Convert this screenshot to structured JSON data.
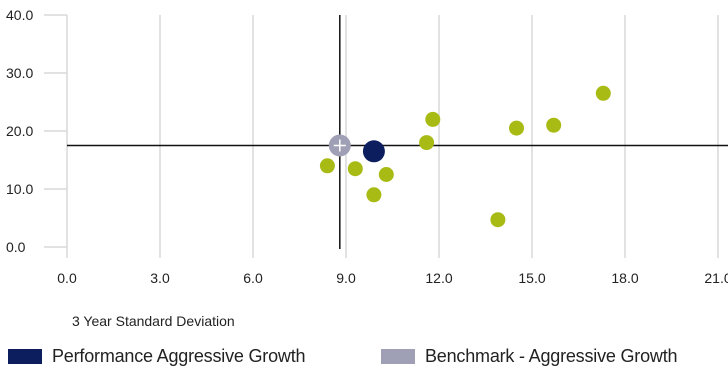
{
  "chart_data": {
    "type": "scatter",
    "xlabel": "3 Year Standard Deviation",
    "ylabel": "",
    "xlim": [
      0,
      21
    ],
    "ylim": [
      0,
      40
    ],
    "x_ticks": [
      "0.0",
      "3.0",
      "6.0",
      "9.0",
      "12.0",
      "15.0",
      "18.0",
      "21.0"
    ],
    "y_ticks": [
      "0.0",
      "10.0",
      "20.0",
      "30.0",
      "40.0"
    ],
    "grid": "vertical",
    "reference_lines": {
      "x": 8.8,
      "y": 17.5
    },
    "colors": {
      "peers": "#a8bb14",
      "performance": "#0c1e5e",
      "benchmark": "#9fa0b6",
      "grid": "#d9d9d9"
    },
    "series": [
      {
        "name": "Performance Aggressive Growth",
        "points": [
          {
            "x": 9.9,
            "y": 16.5
          }
        ]
      },
      {
        "name": "Benchmark - Aggressive Growth",
        "points": [
          {
            "x": 8.8,
            "y": 17.5
          }
        ]
      },
      {
        "points": [
          {
            "x": 8.4,
            "y": 14.0
          },
          {
            "x": 9.3,
            "y": 13.5
          },
          {
            "x": 9.9,
            "y": 9.0
          },
          {
            "x": 10.3,
            "y": 12.5
          },
          {
            "x": 11.6,
            "y": 18.0
          },
          {
            "x": 11.8,
            "y": 22.0
          },
          {
            "x": 13.9,
            "y": 4.7
          },
          {
            "x": 14.5,
            "y": 20.5
          },
          {
            "x": 15.7,
            "y": 21.0
          },
          {
            "x": 17.3,
            "y": 26.5
          }
        ]
      }
    ]
  },
  "legend": {
    "items": [
      {
        "label": "Performance Aggressive Growth",
        "color": "#0c1e5e"
      },
      {
        "label": "Benchmark - Aggressive Growth",
        "color": "#9fa0b6"
      }
    ]
  }
}
